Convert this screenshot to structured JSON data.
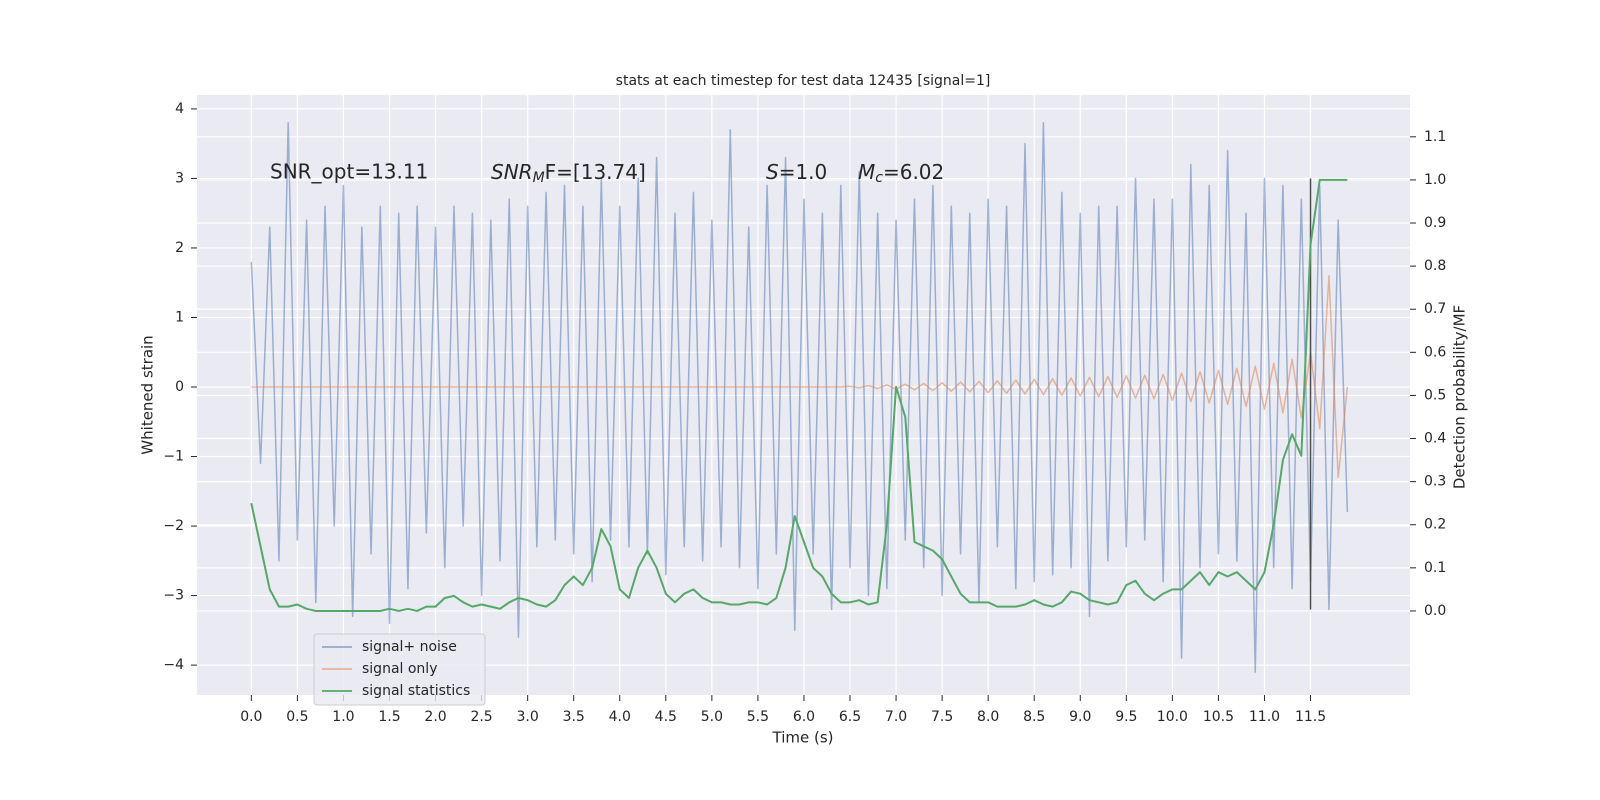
{
  "chart_data": {
    "type": "line",
    "title": "stats at each timestep for test data 12435 [signal=1]",
    "xlabel": "Time (s)",
    "ylabel": "Whitened strain",
    "y2label": "Detection probability/MF",
    "grid": true,
    "legend": "lower left",
    "xlim": [
      -0.59,
      12.58
    ],
    "ylim": [
      -4.43,
      4.2
    ],
    "y2lim": [
      -0.195,
      1.197
    ],
    "xticks": [
      {
        "value": 0,
        "label": "0.0"
      },
      0.5,
      {
        "value": 1,
        "label": "1.0"
      },
      1.5,
      {
        "value": 2,
        "label": "2.0"
      },
      2.5,
      {
        "value": 3,
        "label": "3.0"
      },
      3.5,
      {
        "value": 4,
        "label": "4.0"
      },
      4.5,
      {
        "value": 5,
        "label": "5.0"
      },
      5.5,
      {
        "value": 6,
        "label": "6.0"
      },
      6.5,
      {
        "value": 7,
        "label": "7.0"
      },
      7.5,
      {
        "value": 8,
        "label": "8.0"
      },
      8.5,
      {
        "value": 9,
        "label": "9.0"
      },
      9.5,
      {
        "value": 10,
        "label": "10.0"
      },
      10.5,
      {
        "value": 11,
        "label": "11.0"
      },
      11.5
    ],
    "yticks": [
      {
        "value": -4,
        "label": "−4"
      },
      {
        "value": -3,
        "label": "−3"
      },
      {
        "value": -2,
        "label": "−2"
      },
      {
        "value": -1,
        "label": "−1"
      },
      0,
      1,
      2,
      3,
      4
    ],
    "y2ticks": [
      {
        "value": 0,
        "label": "0.0"
      },
      0.1,
      0.2,
      0.3,
      0.4,
      0.5,
      0.6,
      0.7,
      0.8,
      0.9,
      {
        "value": 1,
        "label": "1.0"
      },
      1.1
    ],
    "annotations": [
      {
        "text": "SNR_opt=13.11"
      },
      {
        "base": "SNR",
        "sub": "M",
        "rest": "F=[13.74]"
      },
      {
        "base": "S",
        "rest": "=1.0"
      },
      {
        "base": "M",
        "sub": "c",
        "rest": "=6.02"
      }
    ],
    "vline": {
      "x": 11.5,
      "y": [
        -3.2,
        3.0
      ],
      "color": "#4d4d4d"
    },
    "x": [
      0,
      0.1,
      0.2,
      0.3,
      0.4,
      0.5,
      0.6,
      0.7,
      0.8,
      0.9,
      1,
      1.1,
      1.2,
      1.3,
      1.4,
      1.5,
      1.6,
      1.7,
      1.8,
      1.9,
      2,
      2.1,
      2.2,
      2.3,
      2.4,
      2.5,
      2.6,
      2.7,
      2.8,
      2.9,
      3,
      3.1,
      3.2,
      3.3,
      3.4,
      3.5,
      3.6,
      3.7,
      3.8,
      3.9,
      4,
      4.1,
      4.2,
      4.3,
      4.4,
      4.5,
      4.6,
      4.7,
      4.8,
      4.9,
      5,
      5.1,
      5.2,
      5.3,
      5.4,
      5.5,
      5.6,
      5.7,
      5.8,
      5.9,
      6,
      6.1,
      6.2,
      6.3,
      6.4,
      6.5,
      6.6,
      6.7,
      6.8,
      6.9,
      7,
      7.1,
      7.2,
      7.3,
      7.4,
      7.5,
      7.6,
      7.7,
      7.8,
      7.9,
      8,
      8.1,
      8.2,
      8.3,
      8.4,
      8.5,
      8.6,
      8.7,
      8.8,
      8.9,
      9,
      9.1,
      9.2,
      9.3,
      9.4,
      9.5,
      9.6,
      9.7,
      9.8,
      9.9,
      10,
      10.1,
      10.2,
      10.3,
      10.4,
      10.5,
      10.6,
      10.7,
      10.8,
      10.9,
      11,
      11.1,
      11.2,
      11.3,
      11.4,
      11.5,
      11.6,
      11.7,
      11.8,
      11.9
    ],
    "series": [
      {
        "name": "signal+ noise",
        "color": "#4c72b0",
        "values": [
          1.8,
          -1.1,
          2.3,
          -2.5,
          3.8,
          -2.2,
          2.4,
          -3.1,
          2.6,
          -2.0,
          2.9,
          -3.3,
          2.3,
          -2.4,
          2.6,
          -3.4,
          2.5,
          -2.9,
          2.6,
          -2.1,
          2.3,
          -2.6,
          2.6,
          -2.0,
          2.5,
          -3.0,
          2.4,
          -2.5,
          2.7,
          -3.6,
          2.6,
          -2.3,
          2.8,
          -2.2,
          2.9,
          -2.4,
          2.6,
          -2.8,
          3.0,
          -2.2,
          2.6,
          -2.3,
          3.0,
          -2.4,
          3.3,
          -2.7,
          2.5,
          -2.3,
          2.8,
          -2.5,
          2.4,
          -2.3,
          3.7,
          -2.6,
          2.3,
          -2.9,
          2.9,
          -2.4,
          3.3,
          -3.5,
          2.7,
          -2.4,
          2.5,
          -3.2,
          2.9,
          -2.6,
          3.1,
          -3.0,
          2.5,
          -2.9,
          2.4,
          -2.2,
          2.7,
          -2.6,
          2.9,
          -3.0,
          2.6,
          -2.4,
          2.5,
          -3.1,
          2.7,
          -2.3,
          2.6,
          -2.9,
          3.5,
          -2.8,
          3.8,
          -2.7,
          2.8,
          -2.6,
          2.5,
          -3.3,
          2.6,
          -2.5,
          2.6,
          -2.3,
          3.0,
          -2.2,
          2.7,
          -2.8,
          2.7,
          -3.9,
          3.2,
          -2.6,
          2.9,
          -2.4,
          3.4,
          -2.5,
          2.5,
          -4.1,
          3.0,
          -2.6,
          2.9,
          -2.9,
          2.7,
          -2.8,
          2.9,
          -3.2,
          2.4,
          -1.8
        ]
      },
      {
        "name": "signal only",
        "color": "#dd8452",
        "values": [
          0,
          0,
          0,
          0,
          0,
          0,
          0,
          0,
          0,
          0,
          0,
          0,
          0,
          0,
          0,
          0,
          0,
          0,
          0,
          0,
          0,
          0,
          0,
          0,
          0,
          0,
          0,
          0,
          0,
          0,
          0,
          0,
          0,
          0,
          0,
          0,
          0,
          0,
          0,
          0,
          0,
          0,
          0,
          0,
          0,
          0,
          0,
          0,
          0,
          0,
          0,
          0,
          0,
          0,
          0,
          0,
          0,
          0,
          0,
          0,
          0,
          0,
          0,
          0,
          0,
          0.01,
          -0.01,
          0.02,
          -0.02,
          0.03,
          -0.03,
          0.04,
          -0.04,
          0.05,
          -0.05,
          0.06,
          -0.06,
          0.07,
          -0.07,
          0.08,
          -0.08,
          0.09,
          -0.09,
          0.1,
          -0.1,
          0.11,
          -0.11,
          0.12,
          -0.12,
          0.13,
          -0.13,
          0.14,
          -0.14,
          0.15,
          -0.15,
          0.16,
          -0.16,
          0.17,
          -0.17,
          0.18,
          -0.19,
          0.2,
          -0.21,
          0.22,
          -0.23,
          0.24,
          -0.25,
          0.27,
          -0.28,
          0.3,
          -0.32,
          0.34,
          -0.37,
          0.4,
          -0.44,
          0.5,
          -0.6,
          1.6,
          -1.3,
          0.0
        ]
      },
      {
        "name": "signal statistics",
        "color": "#55a868",
        "axis": "y2",
        "values": [
          0.25,
          0.15,
          0.05,
          0.01,
          0.01,
          0.015,
          0.005,
          0.0,
          0.0,
          0.0,
          0.0,
          0.0,
          0.0,
          0.0,
          0.0,
          0.005,
          0.0,
          0.005,
          0.0,
          0.01,
          0.01,
          0.03,
          0.035,
          0.02,
          0.01,
          0.015,
          0.01,
          0.005,
          0.02,
          0.03,
          0.025,
          0.015,
          0.01,
          0.025,
          0.06,
          0.08,
          0.06,
          0.1,
          0.19,
          0.15,
          0.05,
          0.03,
          0.1,
          0.14,
          0.1,
          0.04,
          0.02,
          0.04,
          0.05,
          0.03,
          0.02,
          0.02,
          0.015,
          0.015,
          0.02,
          0.02,
          0.015,
          0.03,
          0.1,
          0.22,
          0.16,
          0.1,
          0.08,
          0.04,
          0.02,
          0.02,
          0.025,
          0.015,
          0.02,
          0.2,
          0.52,
          0.45,
          0.16,
          0.15,
          0.14,
          0.12,
          0.08,
          0.04,
          0.02,
          0.02,
          0.02,
          0.01,
          0.01,
          0.01,
          0.015,
          0.025,
          0.015,
          0.01,
          0.02,
          0.045,
          0.04,
          0.025,
          0.02,
          0.015,
          0.02,
          0.06,
          0.07,
          0.04,
          0.025,
          0.04,
          0.05,
          0.05,
          0.07,
          0.09,
          0.06,
          0.09,
          0.08,
          0.09,
          0.07,
          0.05,
          0.09,
          0.2,
          0.35,
          0.41,
          0.36,
          0.85,
          1.0,
          1.0,
          1.0,
          1.0
        ]
      }
    ]
  }
}
